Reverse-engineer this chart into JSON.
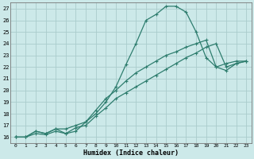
{
  "xlabel": "Humidex (Indice chaleur)",
  "bg_color": "#cce9e9",
  "grid_color": "#aacccc",
  "line_color": "#2e7d6e",
  "xlim": [
    -0.5,
    23.5
  ],
  "ylim": [
    15.5,
    27.5
  ],
  "yticks": [
    16,
    17,
    18,
    19,
    20,
    21,
    22,
    23,
    24,
    25,
    26,
    27
  ],
  "xticks": [
    0,
    1,
    2,
    3,
    4,
    5,
    6,
    7,
    8,
    9,
    10,
    11,
    12,
    13,
    14,
    15,
    16,
    17,
    18,
    19,
    20,
    21,
    22,
    23
  ],
  "s1_x": [
    0,
    1,
    2,
    3,
    4,
    5,
    6,
    7,
    8,
    9,
    10,
    11,
    12,
    13,
    14,
    15,
    16,
    17,
    18,
    19,
    20,
    21,
    22,
    23
  ],
  "s1_y": [
    16.0,
    16.0,
    16.5,
    16.3,
    16.7,
    16.3,
    16.5,
    17.3,
    18.0,
    19.0,
    20.3,
    22.2,
    24.0,
    26.0,
    26.5,
    27.2,
    27.2,
    26.7,
    25.0,
    22.8,
    22.0,
    22.3,
    22.5,
    22.5
  ],
  "s2_x": [
    0,
    1,
    2,
    3,
    4,
    5,
    6,
    7,
    8,
    9,
    10,
    11,
    12,
    13,
    14,
    15,
    16,
    17,
    18,
    19,
    20,
    21,
    22,
    23
  ],
  "s2_y": [
    16.0,
    16.0,
    16.5,
    16.3,
    16.7,
    16.7,
    17.0,
    17.3,
    18.3,
    19.3,
    20.0,
    20.8,
    21.5,
    22.0,
    22.5,
    23.0,
    23.3,
    23.7,
    24.0,
    24.3,
    22.0,
    21.7,
    22.3,
    22.5
  ],
  "s3_x": [
    0,
    1,
    2,
    3,
    4,
    5,
    6,
    7,
    8,
    9,
    10,
    11,
    12,
    13,
    14,
    15,
    16,
    17,
    18,
    19,
    20,
    21,
    22,
    23
  ],
  "s3_y": [
    16.0,
    16.0,
    16.3,
    16.2,
    16.5,
    16.3,
    16.8,
    17.0,
    17.8,
    18.5,
    19.3,
    19.8,
    20.3,
    20.8,
    21.3,
    21.8,
    22.3,
    22.8,
    23.2,
    23.7,
    24.0,
    22.0,
    22.3,
    22.5
  ]
}
